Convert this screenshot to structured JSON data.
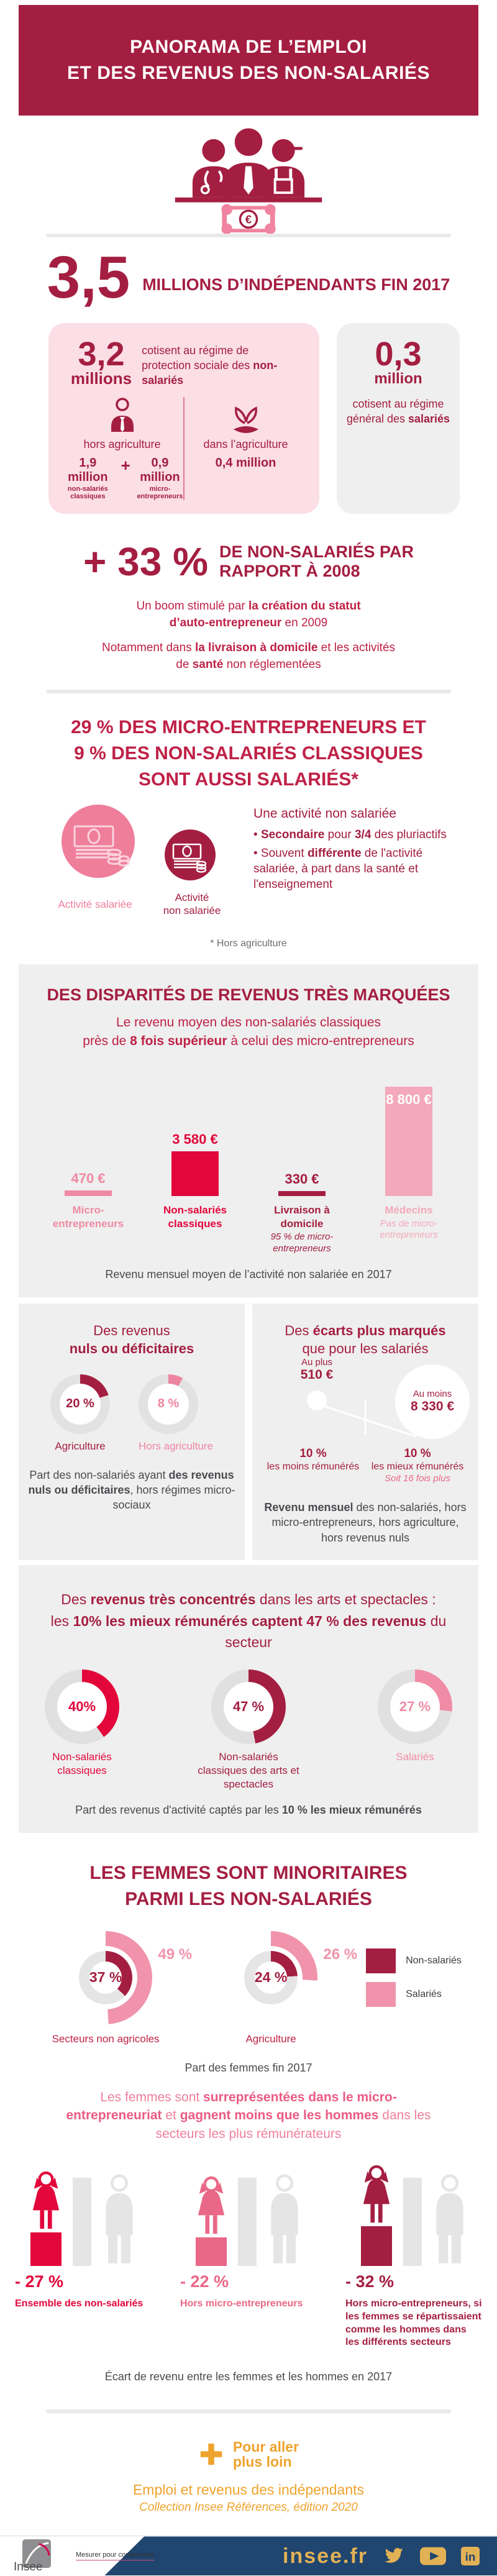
{
  "colors": {
    "darkred": "#a41e41",
    "crimson": "#e2063a",
    "pink": "#ee85a0",
    "pink_light": "#f3a9bb",
    "pink_deep": "#ea6887",
    "pink_card_bg": "#fbdee6",
    "gray_card_bg": "#efefef",
    "orange": "#efa32d",
    "gold": "#e2b155",
    "footer_blue": "#20456f"
  },
  "header": {
    "line1": "PANORAMA DE L’EMPLOI",
    "line2": "ET DES REVENUS DES NON-SALARIÉS"
  },
  "hero": {
    "icon": "three-workers-over-counter-with-euro-banknote"
  },
  "intro": {
    "big": "3,5",
    "big_label": "MILLIONS D’INDÉPENDANTS FIN 2017",
    "pink": {
      "num": "3,2",
      "num_unit": "millions",
      "desc_a": "cotisent au régime de protection sociale des ",
      "desc_b": "non-salariés",
      "left": {
        "label": "hors agriculture",
        "v1": "1,9 million",
        "v1_sub": "non-salariés classiques",
        "plus": "+",
        "v2": "0,9 million",
        "v2_sub": "micro-entrepreneurs"
      },
      "right": {
        "label": "dans l’agriculture",
        "v": "0,4 million"
      }
    },
    "gray": {
      "num": "0,3",
      "unit": "million",
      "desc_a": "cotisent au régime général des ",
      "desc_b": "salariés"
    }
  },
  "growth": {
    "big": "+ 33 %",
    "h1": "DE NON-SALARIÉS PAR",
    "h2": "RAPPORT À 2008",
    "p1_a": "Un boom stimulé par ",
    "p1_b": "la création du statut d’auto-entrepreneur",
    "p1_c": " en 2009",
    "p2_a": "Notamment dans ",
    "p2_b": "la livraison à domicile",
    "p2_c": " et les activités de ",
    "p2_d": "santé",
    "p2_e": " non réglementées"
  },
  "pluri": {
    "h1": "29 % DES MICRO-ENTREPRENEURS ET",
    "h2": "9 % DES NON-SALARIÉS CLASSIQUES",
    "h3": "SONT AUSSI SALARIÉS*",
    "label_salaried": "Activité salariée",
    "label_nonsal_1": "Activité",
    "label_nonsal_2": "non salariée",
    "list_title": "Une activité non salariée",
    "b1_a": "• ",
    "b1_b": "Secondaire",
    "b1_c": " pour ",
    "b1_d": "3/4",
    "b1_e": " des pluriactifs",
    "b2_a": "• Souvent ",
    "b2_b": "différente",
    "b2_c": " de l'activité salariée, à part dans la santé et l'enseignement",
    "footnote": "* Hors agriculture"
  },
  "disp": {
    "title": "DES DISPARITÉS DE REVENUS TRÈS MARQUÉES",
    "sub1": "Le revenu moyen des non-salariés classiques",
    "sub2_a": "près de ",
    "sub2_b": "8 fois supérieur",
    "sub2_c": " à celui des micro-entrepreneurs",
    "caption": "Revenu mensuel moyen de l’activité non salariée en 2017"
  },
  "cards": {
    "left": {
      "t1": "Des revenus",
      "t2": "nuls ou déficitaires",
      "cap_a": "Part des non-salariés ayant ",
      "cap_b": "des revenus nuls ou déficitaires",
      "cap_c": ", hors régimes micro-sociaux"
    },
    "right": {
      "t1_a": "Des ",
      "t1_b": "écarts plus marqués",
      "t2": "que pour les salariés",
      "cap_a": "Revenu mensuel",
      "cap_b": " des non-salariés, hors micro-entrepreneurs, hors agriculture, hors revenus nuls"
    }
  },
  "conc": {
    "t1_a": "Des ",
    "t1_b": "revenus très concentrés",
    "t1_c": " dans les arts et spectacles :",
    "t2_a": "les ",
    "t2_b": "10% les mieux rémunérés captent 47 % des revenus",
    "t2_c": " du secteur",
    "cap_a": "Part des revenus d'activité captés par les ",
    "cap_b": "10 % les mieux rémunérés"
  },
  "women": {
    "t1": "LES FEMMES SONT MINORITAIRES",
    "t2": "PARMI LES NON-SALARIÉS",
    "caption": "Part des femmes fin 2017",
    "p_a": "Les femmes sont ",
    "p_b": "surreprésentées dans le micro-entrepreneuriat",
    "p_c": " et ",
    "p_d": "gagnent moins que les hommes",
    "p_e": " dans les secteurs les plus rémunérateurs"
  },
  "gap": {
    "caption": "Écart de revenu entre les femmes et les hommes en 2017"
  },
  "more": {
    "plus1": "Pour aller",
    "plus2": "plus loin",
    "t1": "Emploi et revenus des indépendants",
    "t2": "Collection Insee Références, édition 2020"
  },
  "footer_bar": {
    "logo_word": "Insee",
    "slogan": "Mesurer pour comprendre",
    "site": "insee.fr",
    "icons": [
      "twitter-icon",
      "youtube-icon",
      "linkedin-icon"
    ]
  },
  "chart_data": [
    {
      "type": "bar",
      "title": "Revenu mensuel moyen de l’activité non salariée en 2017",
      "categories": [
        "Micro-entrepreneurs",
        "Non-salariés classiques",
        "Livraison à domicile",
        "Médecins"
      ],
      "values": [
        470,
        3580,
        330,
        8800
      ],
      "value_labels": [
        "470 €",
        "3 580 €",
        "330 €",
        "8 800 €"
      ],
      "notes": [
        "",
        "",
        "95 % de micro-entrepreneurs",
        "Pas de micro-entrepreneurs"
      ],
      "colors": [
        "#ef8aa3",
        "#e2063a",
        "#a41e41",
        "#f3a9bb"
      ],
      "ylim": [
        0,
        8800
      ],
      "unit": "€ par mois"
    },
    {
      "type": "donut",
      "title": "Part des non-salariés ayant des revenus nuls ou déficitaires, hors régimes micro-sociaux",
      "categories": [
        "Agriculture",
        "Hors agriculture"
      ],
      "values": [
        20,
        8
      ],
      "value_labels": [
        "20 %",
        "8 %"
      ],
      "colors": [
        "#a41e41",
        "#ee85a0"
      ],
      "unit": "%"
    },
    {
      "type": "bubble",
      "title": "Revenu mensuel des non-salariés, hors micro-entrepreneurs, hors agriculture, hors revenus nuls",
      "items": [
        {
          "qualifier": "Au plus",
          "amount": "510 €",
          "value": 510,
          "group_pct": "10 %",
          "group_label": "les moins rémunérés"
        },
        {
          "qualifier": "Au moins",
          "amount": "8 330 €",
          "value": 8330,
          "group_pct": "10 %",
          "group_label": "les mieux rémunérés",
          "note": "Soit 16 fois plus"
        }
      ],
      "unit": "€ par mois"
    },
    {
      "type": "donut",
      "title": "Part des revenus d'activité captés par les 10 % les mieux rémunérés",
      "categories": [
        "Non-salariés classiques",
        "Non-salariés classiques des arts et spectacles",
        "Salariés"
      ],
      "values": [
        40,
        47,
        27
      ],
      "value_labels": [
        "40%",
        "47 %",
        "27 %"
      ],
      "colors": [
        "#e2063a",
        "#a41e41",
        "#f08ca6"
      ],
      "unit": "%"
    },
    {
      "type": "donut",
      "title": "Part des femmes fin 2017",
      "categories": [
        "Secteurs non agricoles",
        "Agriculture"
      ],
      "series": [
        {
          "name": "Non-salariés",
          "values": [
            37,
            24
          ],
          "value_labels": [
            "37 %",
            "24 %"
          ],
          "color": "#a41e41"
        },
        {
          "name": "Salariés",
          "values": [
            49,
            26
          ],
          "value_labels": [
            "49 %",
            "26 %"
          ],
          "color": "#f093ab"
        }
      ],
      "unit": "%"
    },
    {
      "type": "bar",
      "title": "Écart de revenu entre les femmes et les hommes en 2017",
      "categories": [
        "Ensemble des non-salariés",
        "Hors micro-entrepreneurs",
        "Hors micro-entrepreneurs, si les femmes se répartissaient comme les hommes dans les différents secteurs"
      ],
      "values": [
        -27,
        -22,
        -32
      ],
      "value_labels": [
        "- 27 %",
        "- 22 %",
        "- 32 %"
      ],
      "colors": [
        "#e2063a",
        "#ea6887",
        "#a41e41"
      ],
      "unit": "%"
    }
  ]
}
